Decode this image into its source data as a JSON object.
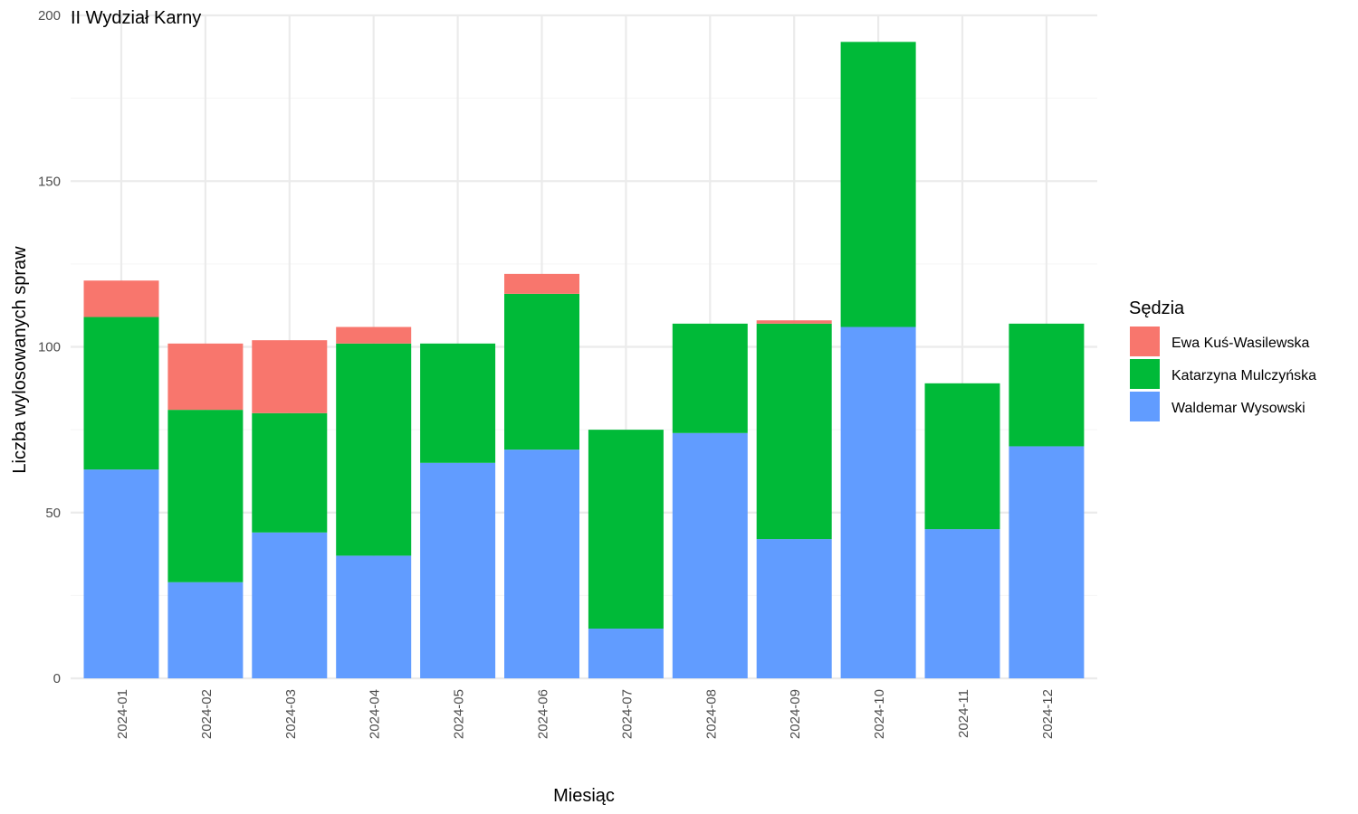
{
  "chart_data": {
    "type": "bar",
    "stacked": true,
    "title": "II Wydział Karny",
    "xlabel": "Miesiąc",
    "ylabel": "Liczba wylosowanych spraw",
    "ylim": [
      0,
      200
    ],
    "y_ticks": [
      0,
      50,
      100,
      150,
      200
    ],
    "grid": true,
    "legend": {
      "title": "Sędzia",
      "placement": "right"
    },
    "categories": [
      "2024-01",
      "2024-02",
      "2024-03",
      "2024-04",
      "2024-05",
      "2024-06",
      "2024-07",
      "2024-08",
      "2024-09",
      "2024-10",
      "2024-11",
      "2024-12"
    ],
    "series": [
      {
        "name": "Waldemar Wysowski",
        "color": "#619CFF",
        "values": [
          63,
          29,
          44,
          37,
          65,
          69,
          15,
          74,
          42,
          106,
          45,
          70
        ]
      },
      {
        "name": "Katarzyna Mulczyńska",
        "color": "#00BA38",
        "values": [
          46,
          52,
          36,
          64,
          36,
          47,
          60,
          33,
          65,
          86,
          44,
          37
        ]
      },
      {
        "name": "Ewa Kuś-Wasilewska",
        "color": "#F8766D",
        "values": [
          11,
          20,
          22,
          5,
          0,
          6,
          0,
          0,
          1,
          0,
          0,
          0
        ]
      }
    ],
    "legend_order": [
      "Ewa Kuś-Wasilewska",
      "Katarzyna Mulczyńska",
      "Waldemar Wysowski"
    ]
  }
}
